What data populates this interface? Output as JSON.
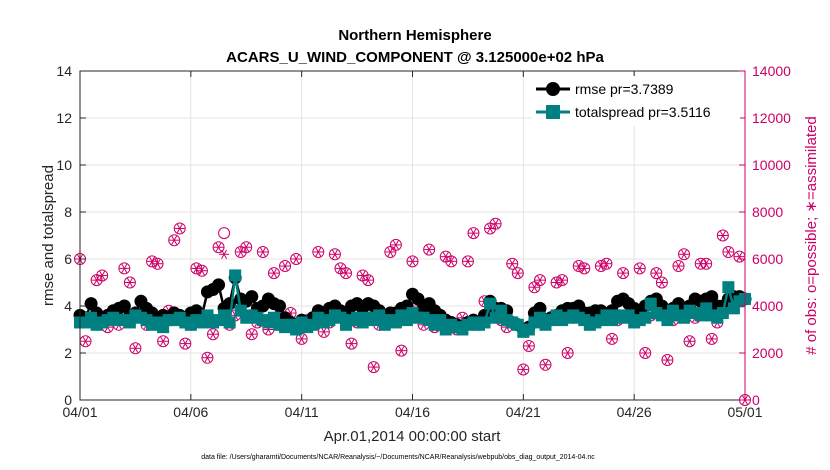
{
  "chart_data": {
    "type": "line",
    "title": "Northern Hemisphere",
    "subtitle": "ACARS_U_WIND_COMPONENT @ 3.125000e+02 hPa",
    "xlabel": "Apr.01,2014 00:00:00 start",
    "ylabel_left": "rmse and totalspread",
    "ylabel_right": "# of obs: o=possible; ∗=assimilated",
    "xlim": [
      0,
      30
    ],
    "ylim_left": [
      0,
      14
    ],
    "ylim_right": [
      0,
      14000
    ],
    "x_tick_labels": [
      "04/01",
      "04/06",
      "04/11",
      "04/16",
      "04/21",
      "04/26",
      "05/01"
    ],
    "x_tick_values": [
      0,
      5,
      10,
      15,
      20,
      25,
      30
    ],
    "y_left_ticks": [
      "0",
      "2",
      "4",
      "6",
      "8",
      "10",
      "12",
      "14"
    ],
    "y_right_ticks": [
      "0",
      "2000",
      "4000",
      "6000",
      "8000",
      "10000",
      "12000",
      "14000"
    ],
    "grid": true,
    "legend_position": "top-right",
    "colors": {
      "rmse": "#000000",
      "totalspread": "#008080",
      "obs": "#cc0066"
    },
    "series": [
      {
        "name": "rmse",
        "legend_label": "rmse pr=3.7389",
        "x": [
          0.0,
          0.25,
          0.5,
          0.75,
          1.0,
          1.25,
          1.5,
          1.75,
          2.0,
          2.25,
          2.5,
          2.75,
          3.0,
          3.25,
          3.5,
          3.75,
          4.0,
          4.25,
          4.5,
          4.75,
          5.0,
          5.25,
          5.5,
          5.75,
          6.0,
          6.25,
          6.5,
          6.75,
          7.0,
          7.25,
          7.5,
          7.75,
          8.0,
          8.25,
          8.5,
          8.75,
          9.0,
          9.25,
          9.5,
          9.75,
          10.0,
          10.25,
          10.5,
          10.75,
          11.0,
          11.25,
          11.5,
          11.75,
          12.0,
          12.25,
          12.5,
          12.75,
          13.0,
          13.25,
          13.5,
          13.75,
          14.0,
          14.25,
          14.5,
          14.75,
          15.0,
          15.25,
          15.5,
          15.75,
          16.0,
          16.25,
          16.5,
          16.75,
          17.0,
          17.25,
          17.5,
          17.75,
          18.0,
          18.25,
          18.5,
          18.75,
          19.0,
          19.25,
          19.5,
          19.75,
          20.0,
          20.25,
          20.5,
          20.75,
          21.0,
          21.25,
          21.5,
          21.75,
          22.0,
          22.25,
          22.5,
          22.75,
          23.0,
          23.25,
          23.5,
          23.75,
          24.0,
          24.25,
          24.5,
          24.75,
          25.0,
          25.25,
          25.5,
          25.75,
          26.0,
          26.25,
          26.5,
          26.75,
          27.0,
          27.25,
          27.5,
          27.75,
          28.0,
          28.25,
          28.5,
          28.75,
          29.0,
          29.25,
          29.5,
          29.75,
          30.0
        ],
        "values": [
          3.6,
          3.5,
          4.1,
          3.7,
          3.4,
          3.6,
          3.8,
          3.9,
          4.0,
          3.6,
          3.7,
          4.2,
          3.9,
          3.7,
          3.5,
          3.6,
          3.5,
          3.7,
          3.6,
          3.5,
          3.7,
          3.8,
          3.6,
          4.6,
          4.7,
          4.9,
          3.9,
          4.1,
          5.2,
          4.3,
          4.2,
          4.4,
          3.9,
          4.0,
          4.3,
          4.1,
          4.0,
          3.5,
          3.3,
          3.2,
          3.4,
          3.3,
          3.5,
          3.8,
          3.6,
          3.9,
          4.0,
          3.8,
          3.7,
          4.0,
          4.1,
          3.9,
          4.1,
          4.0,
          3.8,
          3.6,
          3.7,
          3.7,
          3.9,
          4.0,
          4.5,
          4.3,
          3.9,
          4.1,
          3.8,
          3.6,
          3.4,
          3.3,
          3.2,
          3.1,
          3.3,
          3.4,
          3.3,
          3.6,
          4.2,
          3.9,
          3.9,
          3.8,
          3.3,
          3.2,
          3.0,
          3.1,
          3.7,
          3.9,
          3.4,
          3.5,
          3.6,
          3.8,
          3.9,
          3.9,
          4.0,
          3.7,
          3.7,
          3.8,
          3.8,
          3.6,
          3.8,
          4.2,
          4.3,
          4.1,
          3.9,
          3.8,
          4.0,
          4.2,
          4.3,
          4.0,
          3.8,
          3.9,
          4.1,
          3.9,
          4.0,
          4.3,
          4.2,
          4.3,
          4.4,
          4.0,
          4.0,
          4.3,
          4.4,
          4.4,
          4.3
        ]
      },
      {
        "name": "totalspread",
        "legend_label": "totalspread pr=3.5116",
        "x": [
          0.0,
          0.25,
          0.5,
          0.75,
          1.0,
          1.25,
          1.5,
          1.75,
          2.0,
          2.25,
          2.5,
          2.75,
          3.0,
          3.25,
          3.5,
          3.75,
          4.0,
          4.25,
          4.5,
          4.75,
          5.0,
          5.25,
          5.5,
          5.75,
          6.0,
          6.25,
          6.5,
          6.75,
          7.0,
          7.25,
          7.5,
          7.75,
          8.0,
          8.25,
          8.5,
          8.75,
          9.0,
          9.25,
          9.5,
          9.75,
          10.0,
          10.25,
          10.5,
          10.75,
          11.0,
          11.25,
          11.5,
          11.75,
          12.0,
          12.25,
          12.5,
          12.75,
          13.0,
          13.25,
          13.5,
          13.75,
          14.0,
          14.25,
          14.5,
          14.75,
          15.0,
          15.25,
          15.5,
          15.75,
          16.0,
          16.25,
          16.5,
          16.75,
          17.0,
          17.25,
          17.5,
          17.75,
          18.0,
          18.25,
          18.5,
          18.75,
          19.0,
          19.25,
          19.5,
          19.75,
          20.0,
          20.25,
          20.5,
          20.75,
          21.0,
          21.25,
          21.5,
          21.75,
          22.0,
          22.25,
          22.5,
          22.75,
          23.0,
          23.25,
          23.5,
          23.75,
          24.0,
          24.25,
          24.5,
          24.75,
          25.0,
          25.25,
          25.5,
          25.75,
          26.0,
          26.25,
          26.5,
          26.75,
          27.0,
          27.25,
          27.5,
          27.75,
          28.0,
          28.25,
          28.5,
          28.75,
          29.0,
          29.25,
          29.5,
          29.75,
          30.0
        ],
        "values": [
          3.3,
          3.3,
          3.5,
          3.2,
          3.3,
          3.4,
          3.5,
          3.4,
          3.4,
          3.3,
          3.6,
          3.5,
          3.4,
          3.2,
          3.3,
          3.1,
          3.4,
          3.4,
          3.5,
          3.3,
          3.2,
          3.4,
          3.3,
          3.6,
          3.3,
          3.4,
          3.6,
          3.3,
          5.3,
          3.8,
          3.5,
          3.6,
          3.5,
          3.4,
          3.3,
          3.5,
          3.2,
          3.1,
          3.2,
          3.0,
          3.3,
          3.1,
          3.2,
          3.5,
          3.3,
          3.4,
          3.6,
          3.5,
          3.2,
          3.4,
          3.5,
          3.3,
          3.5,
          3.4,
          3.6,
          3.2,
          3.4,
          3.3,
          3.6,
          3.4,
          3.7,
          3.5,
          3.5,
          3.4,
          3.2,
          3.4,
          3.0,
          3.2,
          3.1,
          3.0,
          3.2,
          3.3,
          3.2,
          3.3,
          4.1,
          3.5,
          3.8,
          3.4,
          3.3,
          3.2,
          2.9,
          3.0,
          3.3,
          3.5,
          3.2,
          3.4,
          3.6,
          3.4,
          3.5,
          3.6,
          3.5,
          3.4,
          3.2,
          3.3,
          3.4,
          3.6,
          3.4,
          3.6,
          3.5,
          3.6,
          3.3,
          3.4,
          3.5,
          4.1,
          3.7,
          3.6,
          3.4,
          3.8,
          3.6,
          3.5,
          3.8,
          3.7,
          3.6,
          3.9,
          3.6,
          3.5,
          3.7,
          4.8,
          3.9,
          4.2,
          4.3
        ]
      }
    ],
    "obs_possible": {
      "x": [
        0.0,
        0.25,
        0.5,
        0.75,
        1.0,
        1.25,
        1.5,
        1.75,
        2.0,
        2.25,
        2.5,
        2.75,
        3.0,
        3.25,
        3.5,
        3.75,
        4.0,
        4.25,
        4.5,
        4.75,
        5.0,
        5.25,
        5.5,
        5.75,
        6.0,
        6.25,
        6.5,
        6.75,
        7.0,
        7.25,
        7.5,
        7.75,
        8.0,
        8.25,
        8.5,
        8.75,
        9.0,
        9.25,
        9.5,
        9.75,
        10.0,
        10.25,
        10.5,
        10.75,
        11.0,
        11.25,
        11.5,
        11.75,
        12.0,
        12.25,
        12.5,
        12.75,
        13.0,
        13.25,
        13.5,
        13.75,
        14.0,
        14.25,
        14.5,
        14.75,
        15.0,
        15.25,
        15.5,
        15.75,
        16.0,
        16.25,
        16.5,
        16.75,
        17.0,
        17.25,
        17.5,
        17.75,
        18.0,
        18.25,
        18.5,
        18.75,
        19.0,
        19.25,
        19.5,
        19.75,
        20.0,
        20.25,
        20.5,
        20.75,
        21.0,
        21.25,
        21.5,
        21.75,
        22.0,
        22.25,
        22.5,
        22.75,
        23.0,
        23.25,
        23.5,
        23.75,
        24.0,
        24.25,
        24.5,
        24.75,
        25.0,
        25.25,
        25.5,
        25.75,
        26.0,
        26.25,
        26.5,
        26.75,
        27.0,
        27.25,
        27.5,
        27.75,
        28.0,
        28.25,
        28.5,
        28.75,
        29.0,
        29.25,
        29.5,
        29.75,
        30.0
      ],
      "values": [
        6000,
        2500,
        3500,
        5100,
        5300,
        3100,
        3400,
        3200,
        5600,
        5000,
        2200,
        3600,
        3200,
        5900,
        5800,
        2500,
        3800,
        6800,
        7300,
        2400,
        3200,
        5600,
        5500,
        1800,
        2800,
        6500,
        7100,
        3200,
        3600,
        6300,
        6500,
        2800,
        3300,
        6300,
        3000,
        5400,
        3600,
        5700,
        3700,
        6000,
        2600,
        3400,
        3500,
        6300,
        2900,
        3300,
        6200,
        5600,
        5400,
        2400,
        3300,
        5300,
        5100,
        1400,
        3200,
        3500,
        6300,
        6600,
        2100,
        3700,
        5900,
        4000,
        3200,
        6400,
        3100,
        3600,
        6100,
        5900,
        3000,
        3500,
        5900,
        7100,
        3200,
        4200,
        7300,
        7500,
        3400,
        3100,
        5800,
        5400,
        1300,
        2300,
        4800,
        5100,
        1500,
        3400,
        5000,
        5100,
        2000,
        3600,
        5700,
        5600,
        3300,
        3300,
        5700,
        5800,
        2600,
        3400,
        5400,
        3500,
        3400,
        5600,
        2000,
        3600,
        5400,
        5000,
        1700,
        3400,
        5700,
        6200,
        2500,
        3500,
        5800,
        5800,
        2600,
        3300,
        7000,
        6300,
        4200,
        6100,
        0
      ]
    },
    "obs_assimilated": {
      "x": [
        0.0,
        0.25,
        0.5,
        0.75,
        1.0,
        1.25,
        1.5,
        1.75,
        2.0,
        2.25,
        2.5,
        2.75,
        3.0,
        3.25,
        3.5,
        3.75,
        4.0,
        4.25,
        4.5,
        4.75,
        5.0,
        5.25,
        5.5,
        5.75,
        6.0,
        6.25,
        6.5,
        6.75,
        7.0,
        7.25,
        7.5,
        7.75,
        8.0,
        8.25,
        8.5,
        8.75,
        9.0,
        9.25,
        9.5,
        9.75,
        10.0,
        10.25,
        10.5,
        10.75,
        11.0,
        11.25,
        11.5,
        11.75,
        12.0,
        12.25,
        12.5,
        12.75,
        13.0,
        13.25,
        13.5,
        13.75,
        14.0,
        14.25,
        14.5,
        14.75,
        15.0,
        15.25,
        15.5,
        15.75,
        16.0,
        16.25,
        16.5,
        16.75,
        17.0,
        17.25,
        17.5,
        17.75,
        18.0,
        18.25,
        18.5,
        18.75,
        19.0,
        19.25,
        19.5,
        19.75,
        20.0,
        20.25,
        20.5,
        20.75,
        21.0,
        21.25,
        21.5,
        21.75,
        22.0,
        22.25,
        22.5,
        22.75,
        23.0,
        23.25,
        23.5,
        23.75,
        24.0,
        24.25,
        24.5,
        24.75,
        25.0,
        25.25,
        25.5,
        25.75,
        26.0,
        26.25,
        26.5,
        26.75,
        27.0,
        27.25,
        27.5,
        27.75,
        28.0,
        28.25,
        28.5,
        28.75,
        29.0,
        29.25,
        29.5,
        29.75,
        30.0
      ],
      "values": [
        6000,
        2500,
        3500,
        5100,
        5300,
        3100,
        3400,
        3200,
        5600,
        5000,
        2200,
        3600,
        3200,
        5900,
        5800,
        2500,
        3800,
        6800,
        7300,
        2400,
        3200,
        5600,
        5500,
        1800,
        2800,
        6500,
        6200,
        3200,
        3600,
        6300,
        6500,
        2800,
        3300,
        6300,
        3000,
        5400,
        3600,
        5700,
        3700,
        6000,
        2600,
        3400,
        3500,
        6300,
        2900,
        3300,
        6200,
        5600,
        5400,
        2400,
        3300,
        5300,
        5100,
        1400,
        3200,
        3500,
        6300,
        6600,
        2100,
        3700,
        5900,
        4000,
        3200,
        6400,
        3100,
        3600,
        6100,
        5900,
        3000,
        3500,
        5900,
        7100,
        3200,
        4200,
        7300,
        7500,
        3400,
        3100,
        5800,
        5400,
        1300,
        2300,
        4800,
        5100,
        1500,
        3400,
        5000,
        5100,
        2000,
        3600,
        5700,
        5600,
        3300,
        3300,
        5700,
        5800,
        2600,
        3400,
        5400,
        3500,
        3400,
        5600,
        2000,
        3600,
        5400,
        5000,
        1700,
        3400,
        5700,
        6200,
        2500,
        3500,
        5800,
        5800,
        2600,
        3300,
        7000,
        6300,
        4200,
        6100,
        0
      ]
    }
  },
  "footer": {
    "data_file": "data file: /Users/gharamti/Documents/NCAR/Reanalysis/~/Documents/NCAR/Reanalysis/webpub/obs_diag_output_2014-04.nc"
  }
}
